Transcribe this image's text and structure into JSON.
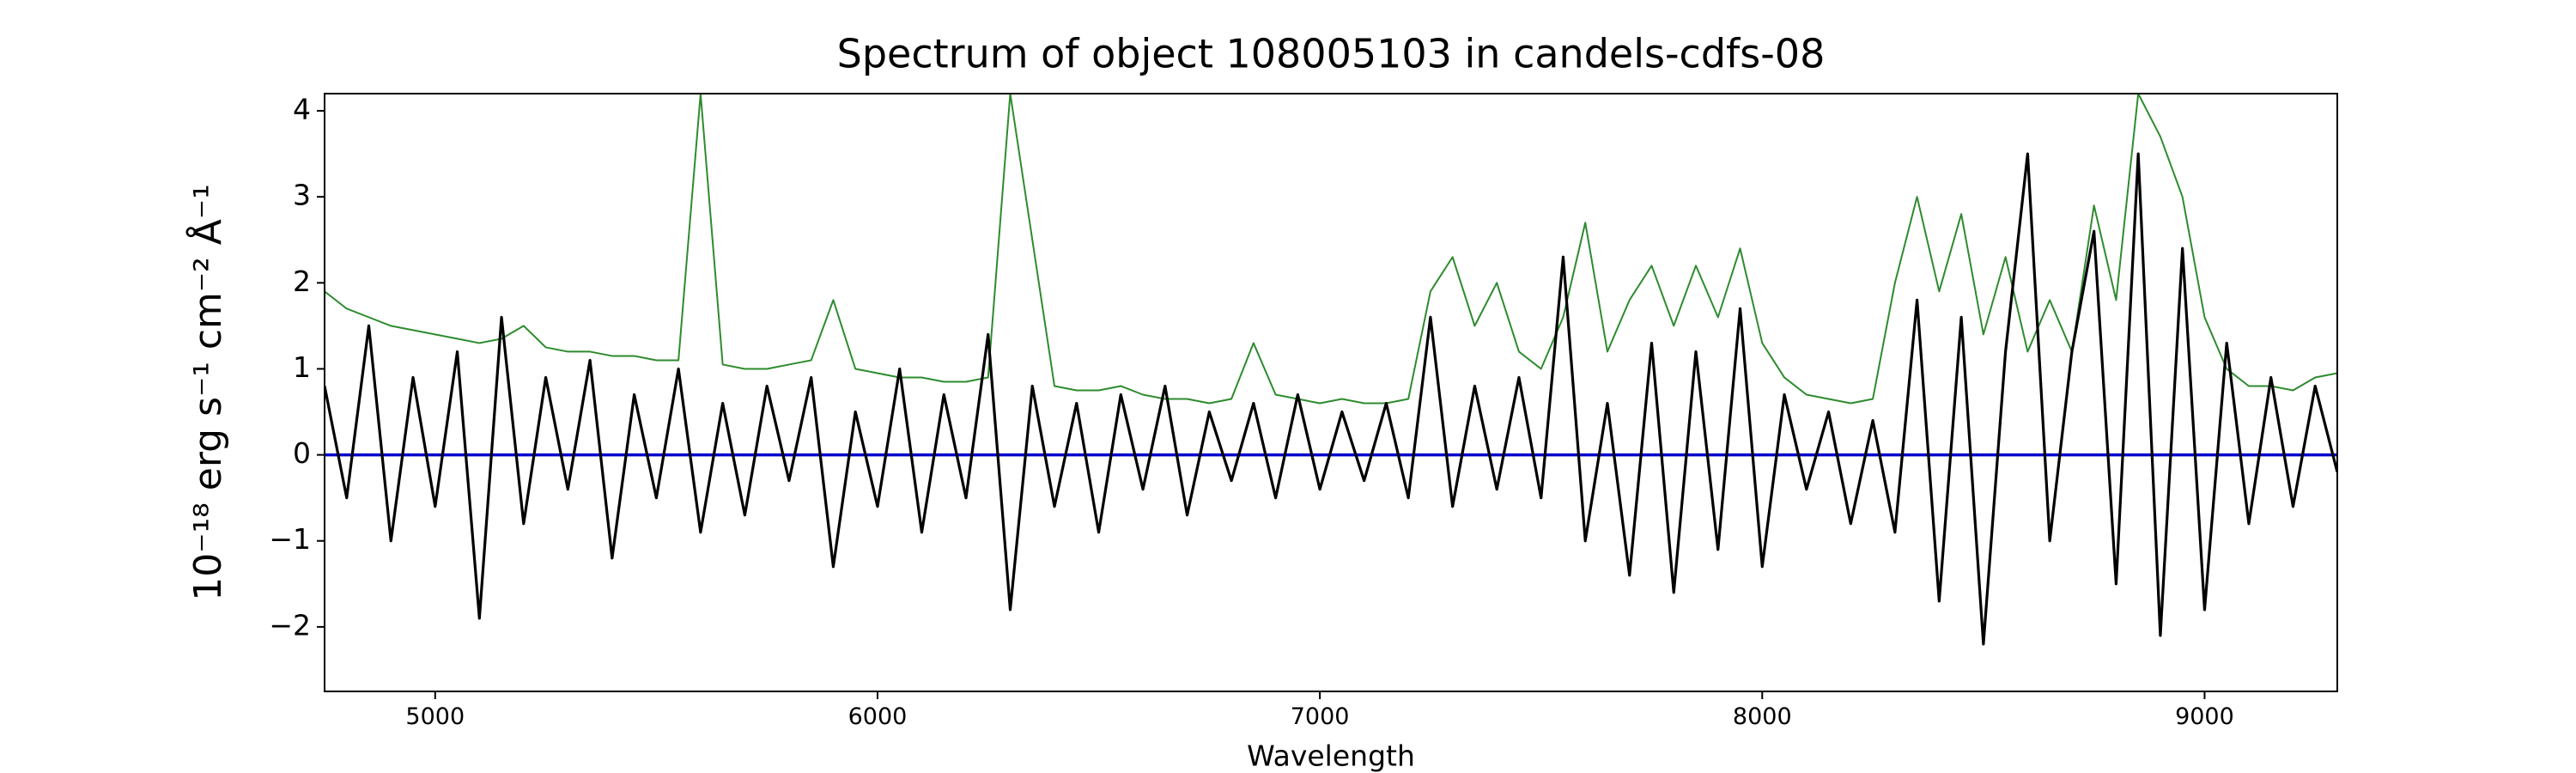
{
  "chart_data": {
    "type": "line",
    "title": "Spectrum of object 108005103 in candels-cdfs-08",
    "x_label": "Wavelength",
    "y_label": "10⁻¹⁸ erg s⁻¹ cm⁻² Å⁻¹",
    "x": [
      4750,
      4800,
      4850,
      4900,
      4950,
      5000,
      5050,
      5100,
      5150,
      5200,
      5250,
      5300,
      5350,
      5400,
      5450,
      5500,
      5550,
      5600,
      5650,
      5700,
      5750,
      5800,
      5850,
      5900,
      5950,
      6000,
      6050,
      6100,
      6150,
      6200,
      6250,
      6300,
      6350,
      6400,
      6450,
      6500,
      6550,
      6600,
      6650,
      6700,
      6750,
      6800,
      6850,
      6900,
      6950,
      7000,
      7050,
      7100,
      7150,
      7200,
      7250,
      7300,
      7350,
      7400,
      7450,
      7500,
      7550,
      7600,
      7650,
      7700,
      7750,
      7800,
      7850,
      7900,
      7950,
      8000,
      8050,
      8100,
      8150,
      8200,
      8250,
      8300,
      8350,
      8400,
      8450,
      8500,
      8550,
      8600,
      8650,
      8700,
      8750,
      8800,
      8850,
      8900,
      8950,
      9000,
      9050,
      9100,
      9150,
      9200,
      9250,
      9300
    ],
    "series": [
      {
        "color": "#2e8b2e",
        "width": 2,
        "values": [
          1.9,
          1.7,
          1.6,
          1.5,
          1.45,
          1.4,
          1.35,
          1.3,
          1.35,
          1.5,
          1.25,
          1.2,
          1.2,
          1.15,
          1.15,
          1.1,
          1.1,
          4.2,
          1.05,
          1.0,
          1.0,
          1.05,
          1.1,
          1.8,
          1.0,
          0.95,
          0.9,
          0.9,
          0.85,
          0.85,
          0.9,
          4.2,
          2.5,
          0.8,
          0.75,
          0.75,
          0.8,
          0.7,
          0.65,
          0.65,
          0.6,
          0.65,
          1.3,
          0.7,
          0.65,
          0.6,
          0.65,
          0.6,
          0.6,
          0.65,
          1.9,
          2.3,
          1.5,
          2.0,
          1.2,
          1.0,
          1.6,
          2.7,
          1.2,
          1.8,
          2.2,
          1.5,
          2.2,
          1.6,
          2.4,
          1.3,
          0.9,
          0.7,
          0.65,
          0.6,
          0.65,
          2.0,
          3.0,
          1.9,
          2.8,
          1.4,
          2.3,
          1.2,
          1.8,
          1.2,
          2.9,
          1.8,
          4.2,
          3.7,
          3.0,
          1.6,
          1.0,
          0.8,
          0.8,
          0.75,
          0.9,
          0.95
        ]
      },
      {
        "color": "#000000",
        "width": 3.2,
        "values": [
          0.8,
          -0.5,
          1.5,
          -1.0,
          0.9,
          -0.6,
          1.2,
          -1.9,
          1.6,
          -0.8,
          0.9,
          -0.4,
          1.1,
          -1.2,
          0.7,
          -0.5,
          1.0,
          -0.9,
          0.6,
          -0.7,
          0.8,
          -0.3,
          0.9,
          -1.3,
          0.5,
          -0.6,
          1.0,
          -0.9,
          0.7,
          -0.5,
          1.4,
          -1.8,
          0.8,
          -0.6,
          0.6,
          -0.9,
          0.7,
          -0.4,
          0.8,
          -0.7,
          0.5,
          -0.3,
          0.6,
          -0.5,
          0.7,
          -0.4,
          0.5,
          -0.3,
          0.6,
          -0.5,
          1.6,
          -0.6,
          0.8,
          -0.4,
          0.9,
          -0.5,
          2.3,
          -1.0,
          0.6,
          -1.4,
          1.3,
          -1.6,
          1.2,
          -1.1,
          1.7,
          -1.3,
          0.7,
          -0.4,
          0.5,
          -0.8,
          0.4,
          -0.9,
          1.8,
          -1.7,
          1.6,
          -2.2,
          1.2,
          3.5,
          -1.0,
          1.2,
          2.6,
          -1.5,
          3.5,
          -2.1,
          2.4,
          -1.8,
          1.3,
          -0.8,
          0.9,
          -0.6,
          0.8,
          -0.2
        ]
      }
    ],
    "hline": {
      "y": 0,
      "color": "#0000cc"
    },
    "xlim": [
      4750,
      9300
    ],
    "ylim": [
      -2.75,
      4.2
    ],
    "xticks": [
      5000,
      6000,
      7000,
      8000,
      9000
    ],
    "yticks": [
      {
        "value": -2,
        "label": "−2"
      },
      {
        "value": -1,
        "label": "−1"
      },
      0,
      1,
      2,
      3,
      4
    ],
    "grid": false
  }
}
